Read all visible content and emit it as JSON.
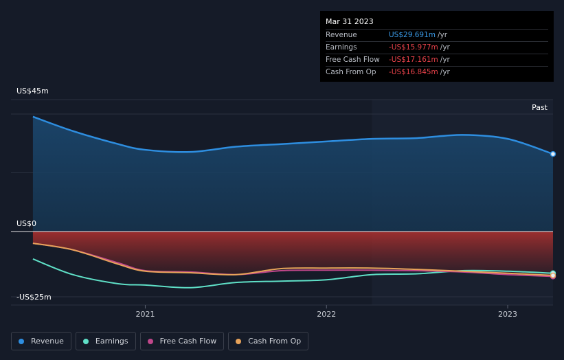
{
  "tooltip": {
    "date": "Mar 31 2023",
    "rows": [
      {
        "label": "Revenue",
        "value": "US$29.691m",
        "unit": "/yr",
        "color": "#3a9be8"
      },
      {
        "label": "Earnings",
        "value": "-US$15.977m",
        "unit": "/yr",
        "color": "#e8424a"
      },
      {
        "label": "Free Cash Flow",
        "value": "-US$17.161m",
        "unit": "/yr",
        "color": "#e8424a"
      },
      {
        "label": "Cash From Op",
        "value": "-US$16.845m",
        "unit": "/yr",
        "color": "#e8424a"
      }
    ]
  },
  "legend": [
    {
      "label": "Revenue",
      "color": "#2e8ee0"
    },
    {
      "label": "Earnings",
      "color": "#5fe0c7"
    },
    {
      "label": "Free Cash Flow",
      "color": "#c0478b"
    },
    {
      "label": "Cash From Op",
      "color": "#e8a35a"
    }
  ],
  "chart_data": {
    "type": "line",
    "y_labels": {
      "top": "US$45m",
      "zero": "US$0",
      "bottom": "-US$25m"
    },
    "ylim": [
      -25,
      45
    ],
    "xlim": [
      2020.35,
      2023.25
    ],
    "x_ticks": [
      {
        "value": 2021,
        "label": "2021"
      },
      {
        "value": 2022,
        "label": "2022"
      },
      {
        "value": 2023,
        "label": "2023"
      }
    ],
    "past_label": "Past",
    "past_start": 2022.25,
    "grid": true,
    "series": [
      {
        "name": "Revenue",
        "color": "#2e8ee0",
        "x": [
          2020.38,
          2020.6,
          2020.85,
          2021.0,
          2021.25,
          2021.5,
          2021.75,
          2022.0,
          2022.25,
          2022.5,
          2022.75,
          2023.0,
          2023.25
        ],
        "y": [
          44.0,
          38.5,
          33.5,
          31.3,
          30.5,
          32.5,
          33.5,
          34.5,
          35.5,
          35.8,
          37.0,
          35.5,
          29.7
        ]
      },
      {
        "name": "Earnings",
        "color": "#5fe0c7",
        "x": [
          2020.38,
          2020.6,
          2020.85,
          2021.0,
          2021.25,
          2021.5,
          2021.75,
          2022.0,
          2022.25,
          2022.5,
          2022.75,
          2023.0,
          2023.25
        ],
        "y": [
          -10.5,
          -16.5,
          -20.0,
          -20.5,
          -21.5,
          -19.5,
          -19.0,
          -18.5,
          -16.5,
          -16.2,
          -15.0,
          -15.2,
          -16.0
        ]
      },
      {
        "name": "Free Cash Flow",
        "color": "#c0478b",
        "x": [
          2020.38,
          2020.6,
          2020.85,
          2021.0,
          2021.25,
          2021.5,
          2021.75,
          2022.0,
          2022.25,
          2022.5,
          2022.75,
          2023.0,
          2023.25
        ],
        "y": [
          -4.5,
          -7.0,
          -12.0,
          -15.0,
          -15.5,
          -16.5,
          -15.0,
          -14.8,
          -14.8,
          -15.0,
          -15.5,
          -16.5,
          -17.2
        ]
      },
      {
        "name": "Cash From Op",
        "color": "#e8a35a",
        "x": [
          2020.38,
          2020.6,
          2020.85,
          2021.0,
          2021.25,
          2021.5,
          2021.75,
          2022.0,
          2022.25,
          2022.5,
          2022.75,
          2023.0,
          2023.25
        ],
        "y": [
          -4.5,
          -7.0,
          -12.5,
          -15.2,
          -15.8,
          -16.5,
          -14.2,
          -14.0,
          -14.0,
          -14.5,
          -15.2,
          -16.0,
          -16.8
        ]
      }
    ]
  }
}
